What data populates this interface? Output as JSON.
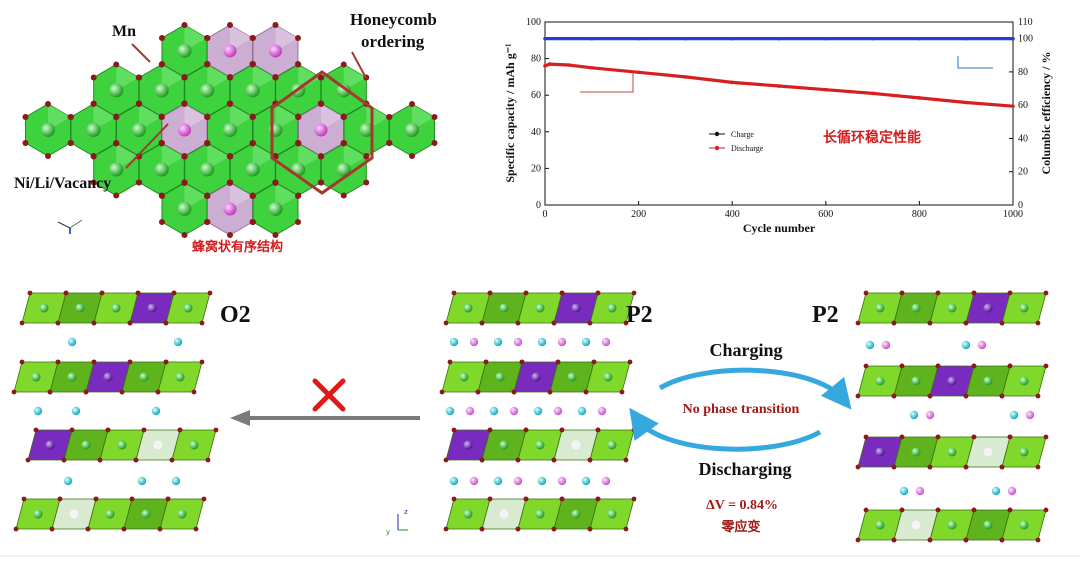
{
  "honeycomb": {
    "label_mn": "Mn",
    "label_honeycomb_1": "Honeycomb",
    "label_honeycomb_2": "ordering",
    "label_nili": "Ni/Li/Vacancy",
    "caption_cn": "蜂窝状有序结构",
    "colors": {
      "mn_octa": "#3fd23f",
      "ni_octa": "#c7a8cf",
      "ring": "#a33b2c"
    }
  },
  "chart_data": {
    "type": "line",
    "xlabel": "Cycle number",
    "ylabel": "Specific capacity / mAh g⁻¹",
    "ylabel_right": "Columbic efficiency / %",
    "xlim": [
      0,
      1000
    ],
    "ylim": [
      0,
      100
    ],
    "ylim_right": [
      0,
      110
    ],
    "x_ticks": [
      "0",
      "200",
      "400",
      "600",
      "800",
      "1000"
    ],
    "y_ticks": [
      "0",
      "20",
      "40",
      "60",
      "80",
      "100"
    ],
    "y_ticks_right": [
      "0",
      "20",
      "40",
      "60",
      "80",
      "100",
      "110"
    ],
    "legend": [
      "Charge",
      "Discharge"
    ],
    "legend_position": "center-left",
    "annotation": "长循环稳定性能",
    "series": [
      {
        "name": "Charge",
        "axis": "right",
        "color": "#1f3fd6",
        "x": [
          0,
          100,
          200,
          300,
          400,
          500,
          600,
          700,
          800,
          900,
          1000
        ],
        "y": [
          100,
          100,
          100,
          100,
          100,
          100,
          100,
          100,
          100,
          100,
          100
        ]
      },
      {
        "name": "Discharge",
        "axis": "left",
        "color": "#d62020",
        "x": [
          0,
          10,
          50,
          100,
          200,
          300,
          400,
          500,
          600,
          700,
          800,
          900,
          1000
        ],
        "y": [
          76,
          77,
          76.5,
          75,
          72.5,
          70,
          67,
          65,
          63,
          61,
          58.5,
          56,
          54
        ]
      }
    ]
  },
  "structures": {
    "o2": {
      "label": "O2"
    },
    "p2_left": {
      "label": "P2"
    },
    "p2_right": {
      "label": "P2"
    },
    "charging": "Charging",
    "discharging": "Discharging",
    "no_phase": "No phase transition",
    "delta_v": "ΔV = 0.84%",
    "zero_strain": "零应变",
    "colors": {
      "tm_light": "#7fd82a",
      "tm_dark": "#5fb41e",
      "ni": "#7a2bbf",
      "vac": "#d8ead0",
      "na_cyan": "#33c6d6",
      "na_pink": "#d57ad6",
      "arrow": "#35a8e0",
      "cross": "#e01818"
    }
  }
}
